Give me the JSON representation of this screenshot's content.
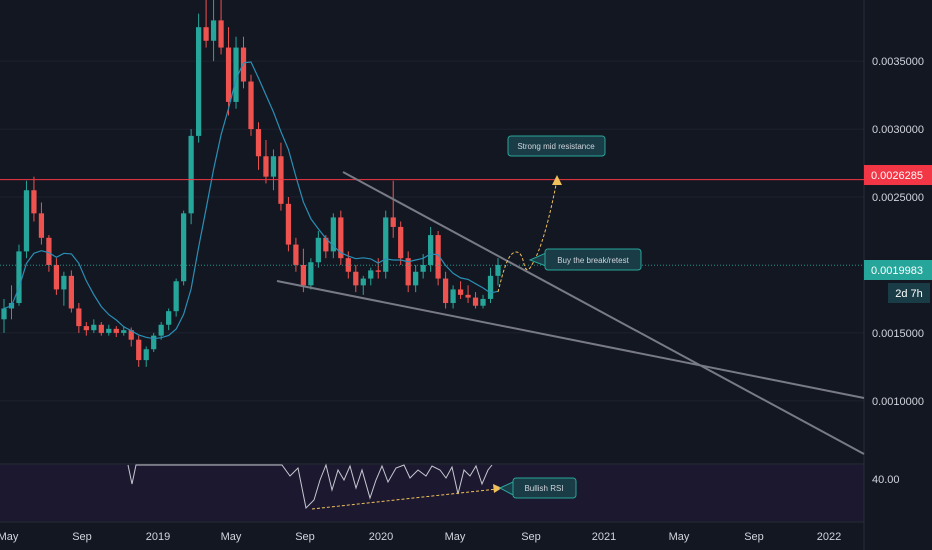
{
  "colors": {
    "background": "#131722",
    "up": "#26a69a",
    "down": "#ef5350",
    "ma": "#2a8fb5",
    "trendline": "#787b86",
    "resistance": "#f23645",
    "current_line": "#26a69a",
    "arrow": "#f0c05a",
    "rsi_band": "#1c1830",
    "rsi_line": "#c5c8d0",
    "annotation_bg": "#1a3c46",
    "annotation_border": "#26a69a"
  },
  "chart_data": {
    "type": "candlestick",
    "x_ticks": [
      "May",
      "Sep",
      "2019",
      "May",
      "Sep",
      "2020",
      "May",
      "Sep",
      "2021",
      "May",
      "Sep",
      "2022"
    ],
    "y_ticks": [
      "0.0035000",
      "0.0030000",
      "0.0025000",
      "0.0015000",
      "0.0010000"
    ],
    "ylim": [
      0.00055,
      0.00395
    ],
    "resistance": {
      "value": 0.0026285,
      "label": "0.0026285"
    },
    "current_price": {
      "value": 0.0019983,
      "label": "0.0019983"
    },
    "countdown": "2d 7h",
    "rsi_tick": "40.00",
    "annotations": {
      "resistance_note": "Strong mid resistance",
      "break_note": "Buy the break/retest",
      "rsi_note": "Bullish RSI"
    },
    "candles": [
      [
        0.0016,
        0.00175,
        0.0015,
        0.00168
      ],
      [
        0.00168,
        0.00185,
        0.0016,
        0.00172
      ],
      [
        0.00172,
        0.00215,
        0.0017,
        0.0021
      ],
      [
        0.0021,
        0.00262,
        0.00205,
        0.00255
      ],
      [
        0.00255,
        0.00265,
        0.00232,
        0.00238
      ],
      [
        0.00238,
        0.00246,
        0.00215,
        0.0022
      ],
      [
        0.0022,
        0.00222,
        0.00195,
        0.002
      ],
      [
        0.002,
        0.00205,
        0.00178,
        0.00182
      ],
      [
        0.00182,
        0.00195,
        0.0017,
        0.00192
      ],
      [
        0.00192,
        0.00196,
        0.00165,
        0.00168
      ],
      [
        0.00168,
        0.00172,
        0.0015,
        0.00155
      ],
      [
        0.00155,
        0.00158,
        0.00148,
        0.00152
      ],
      [
        0.00152,
        0.0016,
        0.0015,
        0.00156
      ],
      [
        0.00156,
        0.00158,
        0.00148,
        0.0015
      ],
      [
        0.0015,
        0.00156,
        0.00148,
        0.00153
      ],
      [
        0.00153,
        0.00155,
        0.00147,
        0.0015
      ],
      [
        0.0015,
        0.00155,
        0.00148,
        0.00152
      ],
      [
        0.00152,
        0.00154,
        0.0014,
        0.00145
      ],
      [
        0.00145,
        0.00148,
        0.00125,
        0.0013
      ],
      [
        0.0013,
        0.0014,
        0.00125,
        0.00138
      ],
      [
        0.00138,
        0.0015,
        0.00136,
        0.00148
      ],
      [
        0.00148,
        0.00158,
        0.00145,
        0.00156
      ],
      [
        0.00156,
        0.00168,
        0.00152,
        0.00166
      ],
      [
        0.00166,
        0.0019,
        0.00162,
        0.00188
      ],
      [
        0.00188,
        0.0024,
        0.00185,
        0.00238
      ],
      [
        0.00238,
        0.003,
        0.0023,
        0.00295
      ],
      [
        0.00295,
        0.00385,
        0.0029,
        0.00375
      ],
      [
        0.00375,
        0.00395,
        0.0036,
        0.00365
      ],
      [
        0.00365,
        0.00395,
        0.0035,
        0.0038
      ],
      [
        0.0038,
        0.00395,
        0.00355,
        0.0036
      ],
      [
        0.0036,
        0.00375,
        0.0031,
        0.0032
      ],
      [
        0.0032,
        0.00368,
        0.00315,
        0.0036
      ],
      [
        0.0036,
        0.00368,
        0.0033,
        0.00335
      ],
      [
        0.00335,
        0.0034,
        0.00295,
        0.003
      ],
      [
        0.003,
        0.00305,
        0.0027,
        0.0028
      ],
      [
        0.0028,
        0.00292,
        0.0026,
        0.00265
      ],
      [
        0.00265,
        0.00285,
        0.00255,
        0.0028
      ],
      [
        0.0028,
        0.0029,
        0.0024,
        0.00245
      ],
      [
        0.00245,
        0.0025,
        0.0021,
        0.00215
      ],
      [
        0.00215,
        0.0022,
        0.00195,
        0.002
      ],
      [
        0.002,
        0.00212,
        0.0018,
        0.00185
      ],
      [
        0.00185,
        0.00205,
        0.00182,
        0.00202
      ],
      [
        0.00202,
        0.00225,
        0.00198,
        0.0022
      ],
      [
        0.0022,
        0.00222,
        0.00205,
        0.0021
      ],
      [
        0.0021,
        0.00238,
        0.00205,
        0.00235
      ],
      [
        0.00235,
        0.0024,
        0.002,
        0.00205
      ],
      [
        0.00205,
        0.0021,
        0.0019,
        0.00195
      ],
      [
        0.00195,
        0.002,
        0.0018,
        0.00185
      ],
      [
        0.00185,
        0.00192,
        0.00178,
        0.0019
      ],
      [
        0.0019,
        0.00198,
        0.00185,
        0.00196
      ],
      [
        0.00196,
        0.00205,
        0.0019,
        0.00195
      ],
      [
        0.00195,
        0.0024,
        0.0019,
        0.00235
      ],
      [
        0.00235,
        0.00262,
        0.0022,
        0.00228
      ],
      [
        0.00228,
        0.00232,
        0.002,
        0.00205
      ],
      [
        0.00205,
        0.0021,
        0.0018,
        0.00185
      ],
      [
        0.00185,
        0.002,
        0.0018,
        0.00195
      ],
      [
        0.00195,
        0.00208,
        0.0019,
        0.002
      ],
      [
        0.002,
        0.00228,
        0.00195,
        0.00222
      ],
      [
        0.00222,
        0.00225,
        0.00185,
        0.0019
      ],
      [
        0.0019,
        0.00195,
        0.00168,
        0.00172
      ],
      [
        0.00172,
        0.00185,
        0.00168,
        0.00182
      ],
      [
        0.00182,
        0.00188,
        0.00175,
        0.00178
      ],
      [
        0.00178,
        0.00185,
        0.00172,
        0.00176
      ],
      [
        0.00176,
        0.0018,
        0.00168,
        0.0017
      ],
      [
        0.0017,
        0.00178,
        0.00168,
        0.00175
      ],
      [
        0.00175,
        0.00198,
        0.00172,
        0.00192
      ],
      [
        0.00192,
        0.00205,
        0.00185,
        0.002
      ]
    ]
  }
}
